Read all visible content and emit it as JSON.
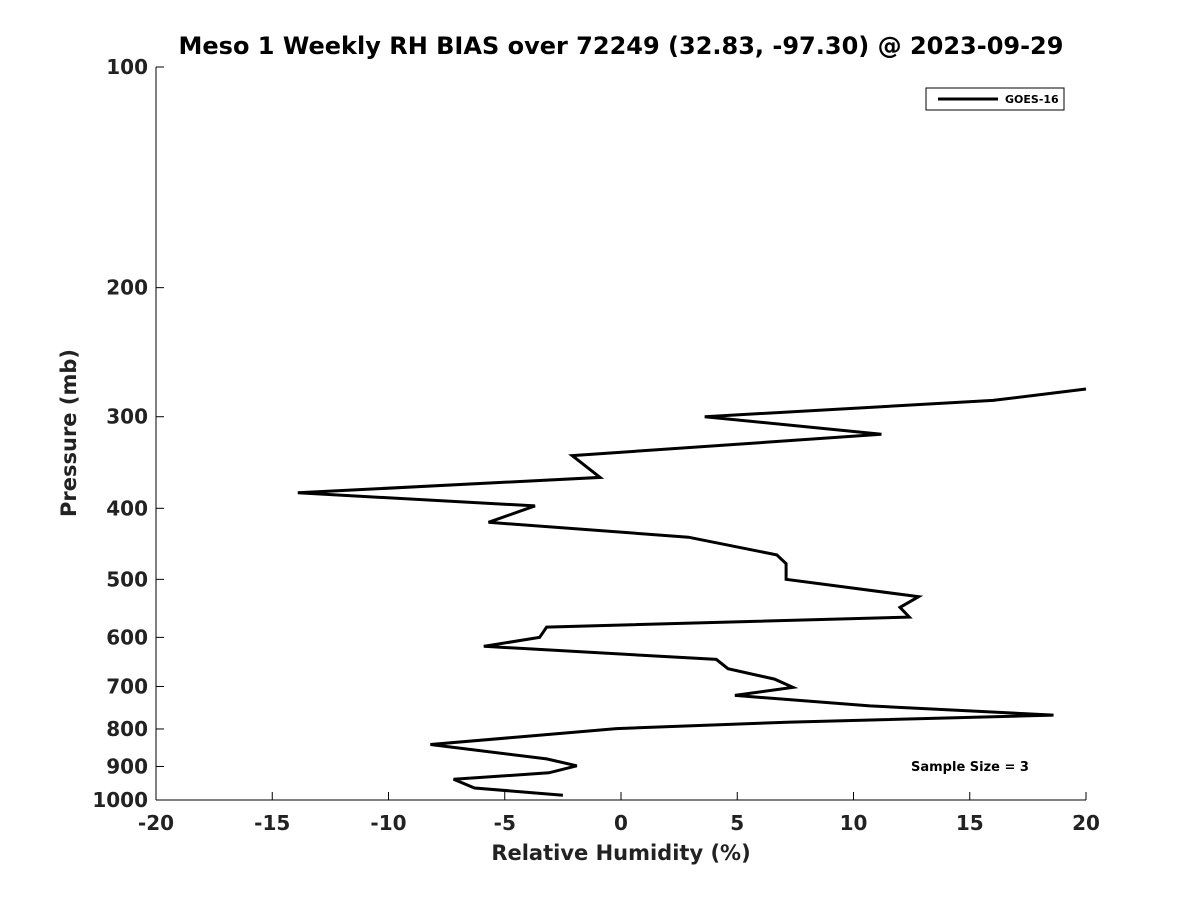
{
  "chart_data": {
    "type": "line",
    "title": "Meso 1 Weekly RH BIAS over 72249 (32.83, -97.30) @ 2023-09-29",
    "xlabel": "Relative Humidity (%)",
    "ylabel": "Pressure (mb)",
    "xlim": [
      -20,
      20
    ],
    "ylim": [
      1000,
      100
    ],
    "yscale": "log",
    "xticks": [
      -20,
      -15,
      -10,
      -5,
      0,
      5,
      10,
      15,
      20
    ],
    "yticks": [
      100,
      200,
      300,
      400,
      500,
      600,
      700,
      800,
      900,
      1000
    ],
    "grid": false,
    "legend_position": "top-right",
    "series": [
      {
        "name": "GOES-16",
        "color": "#000000",
        "points": [
          [
            20.0,
            275
          ],
          [
            16.0,
            285
          ],
          [
            3.6,
            300
          ],
          [
            11.2,
            317
          ],
          [
            -2.1,
            339
          ],
          [
            -0.9,
            363
          ],
          [
            -13.9,
            381
          ],
          [
            -3.7,
            397
          ],
          [
            -5.7,
            418
          ],
          [
            2.9,
            438
          ],
          [
            6.7,
            463
          ],
          [
            7.1,
            476
          ],
          [
            7.1,
            500
          ],
          [
            12.8,
            528
          ],
          [
            12.0,
            546
          ],
          [
            12.4,
            563
          ],
          [
            -3.2,
            581
          ],
          [
            -3.5,
            600
          ],
          [
            -5.9,
            617
          ],
          [
            4.1,
            643
          ],
          [
            4.6,
            662
          ],
          [
            6.6,
            684
          ],
          [
            7.4,
            702
          ],
          [
            4.9,
            720
          ],
          [
            10.7,
            744
          ],
          [
            18.6,
            766
          ],
          [
            7.3,
            783
          ],
          [
            -0.2,
            799
          ],
          [
            -3.9,
            818
          ],
          [
            -8.2,
            840
          ],
          [
            -3.2,
            879
          ],
          [
            -1.9,
            898
          ],
          [
            -3.1,
            918
          ],
          [
            -7.2,
            937
          ],
          [
            -6.3,
            963
          ],
          [
            -2.5,
            985
          ]
        ]
      }
    ],
    "annotation": "Sample Size = 3"
  }
}
